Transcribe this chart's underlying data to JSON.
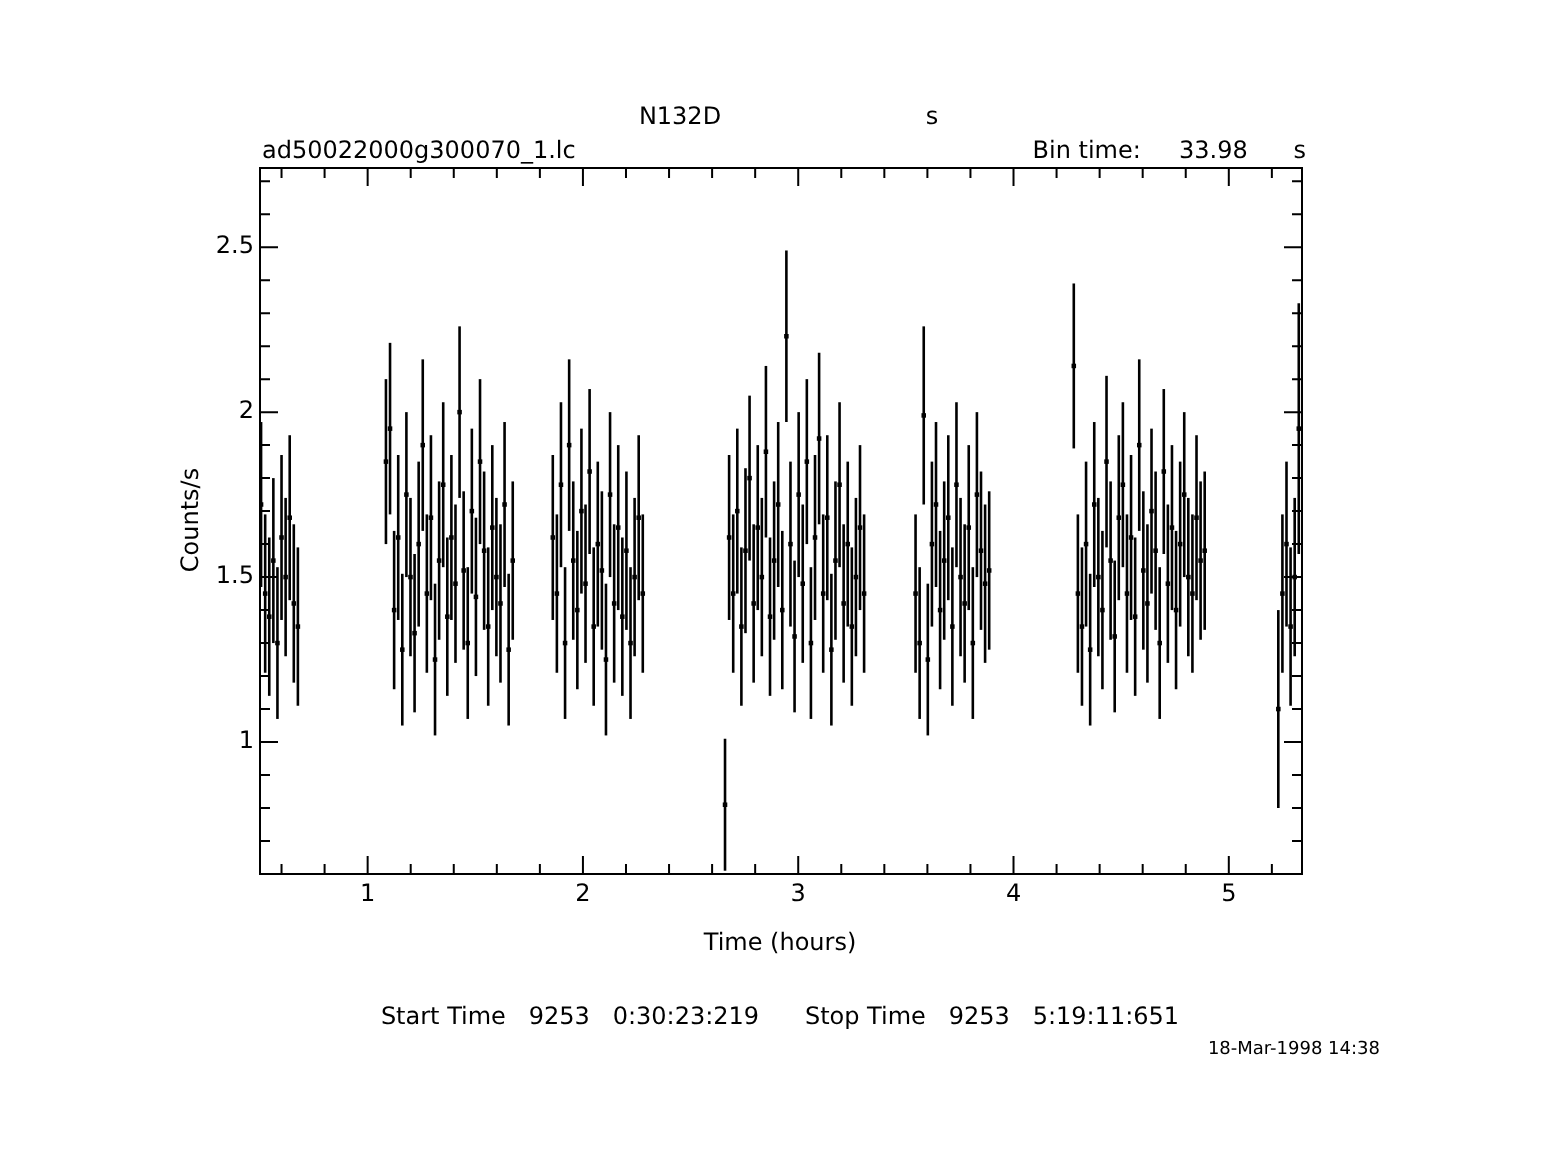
{
  "chart_data": {
    "type": "scatter",
    "title": "N132D",
    "xlabel": "Time (hours)",
    "ylabel": "Counts/s",
    "annotations": [
      "s",
      "ad50022000g300070_1.lc",
      "Bin time:     33.98      s",
      "Start Time   9253   0:30:23:219      Stop Time   9253   5:19:11:651",
      "18-Mar-1998 14:38"
    ],
    "xlim": [
      0.5,
      5.34
    ],
    "ylim": [
      0.6,
      2.74
    ],
    "xticks": [
      {
        "value": 0.6,
        "label": null
      },
      {
        "value": 0.8,
        "label": null
      },
      1,
      {
        "value": 1.2,
        "label": null
      },
      {
        "value": 1.4,
        "label": null
      },
      {
        "value": 1.6,
        "label": null
      },
      {
        "value": 1.8,
        "label": null
      },
      2,
      {
        "value": 2.2,
        "label": null
      },
      {
        "value": 2.4,
        "label": null
      },
      {
        "value": 2.6,
        "label": null
      },
      {
        "value": 2.8,
        "label": null
      },
      3,
      {
        "value": 3.2,
        "label": null
      },
      {
        "value": 3.4,
        "label": null
      },
      {
        "value": 3.6,
        "label": null
      },
      {
        "value": 3.8,
        "label": null
      },
      4,
      {
        "value": 4.2,
        "label": null
      },
      {
        "value": 4.4,
        "label": null
      },
      {
        "value": 4.6,
        "label": null
      },
      {
        "value": 4.8,
        "label": null
      },
      5,
      {
        "value": 5.2,
        "label": null
      }
    ],
    "yticks": [
      {
        "value": 0.7,
        "label": null
      },
      {
        "value": 0.8,
        "label": null
      },
      {
        "value": 0.9,
        "label": null
      },
      1,
      {
        "value": 1.1,
        "label": null
      },
      {
        "value": 1.2,
        "label": null
      },
      {
        "value": 1.3,
        "label": null
      },
      {
        "value": 1.4,
        "label": null
      },
      1.5,
      {
        "value": 1.6,
        "label": null
      },
      {
        "value": 1.7,
        "label": null
      },
      {
        "value": 1.8,
        "label": null
      },
      {
        "value": 1.9,
        "label": null
      },
      2,
      {
        "value": 2.1,
        "label": null
      },
      {
        "value": 2.2,
        "label": null
      },
      {
        "value": 2.3,
        "label": null
      },
      {
        "value": 2.4,
        "label": null
      },
      2.5,
      {
        "value": 2.6,
        "label": null
      },
      {
        "value": 2.7,
        "label": null
      }
    ],
    "grid": false,
    "legend": false,
    "marker": "square",
    "series": [
      {
        "color": "#000000",
        "x": [
          0.505,
          0.524,
          0.543,
          0.562,
          0.581,
          0.6,
          0.619,
          0.638,
          0.657,
          0.676,
          1.085,
          1.104,
          1.123,
          1.142,
          1.161,
          1.18,
          1.199,
          1.218,
          1.237,
          1.256,
          1.275,
          1.294,
          1.313,
          1.332,
          1.351,
          1.37,
          1.389,
          1.408,
          1.427,
          1.446,
          1.465,
          1.484,
          1.503,
          1.522,
          1.541,
          1.56,
          1.579,
          1.598,
          1.617,
          1.636,
          1.655,
          1.674,
          1.86,
          1.879,
          1.898,
          1.917,
          1.936,
          1.955,
          1.974,
          1.993,
          2.012,
          2.031,
          2.05,
          2.069,
          2.088,
          2.107,
          2.126,
          2.145,
          2.164,
          2.183,
          2.202,
          2.221,
          2.24,
          2.259,
          2.278,
          2.66,
          2.679,
          2.698,
          2.717,
          2.736,
          2.755,
          2.774,
          2.793,
          2.812,
          2.831,
          2.85,
          2.869,
          2.888,
          2.907,
          2.926,
          2.945,
          2.964,
          2.983,
          3.002,
          3.021,
          3.04,
          3.059,
          3.078,
          3.097,
          3.116,
          3.135,
          3.154,
          3.173,
          3.192,
          3.211,
          3.23,
          3.249,
          3.268,
          3.287,
          3.306,
          3.545,
          3.564,
          3.583,
          3.602,
          3.621,
          3.64,
          3.659,
          3.678,
          3.697,
          3.716,
          3.735,
          3.754,
          3.773,
          3.792,
          3.811,
          3.83,
          3.849,
          3.868,
          3.887,
          4.28,
          4.299,
          4.318,
          4.337,
          4.356,
          4.375,
          4.394,
          4.413,
          4.432,
          4.451,
          4.47,
          4.489,
          4.508,
          4.527,
          4.546,
          4.565,
          4.584,
          4.603,
          4.622,
          4.641,
          4.66,
          4.679,
          4.698,
          4.717,
          4.736,
          4.755,
          4.774,
          4.793,
          4.812,
          4.831,
          4.85,
          4.869,
          4.888,
          5.23,
          5.249,
          5.268,
          5.287,
          5.306,
          5.325
        ],
        "values": [
          1.72,
          1.45,
          1.38,
          1.55,
          1.3,
          1.62,
          1.5,
          1.68,
          1.42,
          1.35,
          1.85,
          1.95,
          1.4,
          1.62,
          1.28,
          1.75,
          1.5,
          1.33,
          1.6,
          1.9,
          1.45,
          1.68,
          1.25,
          1.55,
          1.78,
          1.38,
          1.62,
          1.48,
          2.0,
          1.52,
          1.3,
          1.7,
          1.44,
          1.85,
          1.58,
          1.35,
          1.65,
          1.5,
          1.42,
          1.72,
          1.28,
          1.55,
          1.62,
          1.45,
          1.78,
          1.3,
          1.9,
          1.55,
          1.4,
          1.7,
          1.48,
          1.82,
          1.35,
          1.6,
          1.52,
          1.25,
          1.75,
          1.42,
          1.65,
          1.38,
          1.58,
          1.3,
          1.5,
          1.68,
          1.45,
          0.81,
          1.62,
          1.45,
          1.7,
          1.35,
          1.58,
          1.8,
          1.42,
          1.65,
          1.5,
          1.88,
          1.38,
          1.55,
          1.72,
          1.4,
          2.23,
          1.6,
          1.32,
          1.75,
          1.48,
          1.85,
          1.3,
          1.62,
          1.92,
          1.45,
          1.68,
          1.28,
          1.55,
          1.78,
          1.42,
          1.6,
          1.35,
          1.5,
          1.65,
          1.45,
          1.45,
          1.3,
          1.99,
          1.25,
          1.6,
          1.72,
          1.4,
          1.55,
          1.68,
          1.35,
          1.78,
          1.5,
          1.42,
          1.65,
          1.3,
          1.75,
          1.58,
          1.48,
          1.52,
          2.14,
          1.45,
          1.35,
          1.6,
          1.28,
          1.72,
          1.5,
          1.4,
          1.85,
          1.55,
          1.32,
          1.68,
          1.78,
          1.45,
          1.62,
          1.38,
          1.9,
          1.52,
          1.42,
          1.7,
          1.58,
          1.3,
          1.82,
          1.48,
          1.65,
          1.4,
          1.6,
          1.75,
          1.5,
          1.45,
          1.68,
          1.55,
          1.58,
          1.1,
          1.45,
          1.6,
          1.35,
          1.5,
          1.95
        ],
        "errors": [
          0.25,
          0.24,
          0.24,
          0.25,
          0.23,
          0.25,
          0.24,
          0.25,
          0.24,
          0.24,
          0.25,
          0.26,
          0.24,
          0.25,
          0.23,
          0.25,
          0.24,
          0.24,
          0.25,
          0.26,
          0.24,
          0.25,
          0.23,
          0.24,
          0.25,
          0.24,
          0.25,
          0.24,
          0.26,
          0.24,
          0.23,
          0.25,
          0.24,
          0.25,
          0.24,
          0.24,
          0.25,
          0.24,
          0.24,
          0.25,
          0.23,
          0.24,
          0.25,
          0.24,
          0.25,
          0.23,
          0.26,
          0.24,
          0.24,
          0.25,
          0.24,
          0.25,
          0.24,
          0.25,
          0.24,
          0.23,
          0.25,
          0.24,
          0.25,
          0.24,
          0.24,
          0.23,
          0.24,
          0.25,
          0.24,
          0.2,
          0.25,
          0.24,
          0.25,
          0.24,
          0.25,
          0.25,
          0.24,
          0.25,
          0.24,
          0.26,
          0.24,
          0.24,
          0.25,
          0.24,
          0.26,
          0.25,
          0.23,
          0.25,
          0.24,
          0.25,
          0.23,
          0.25,
          0.26,
          0.24,
          0.25,
          0.23,
          0.24,
          0.25,
          0.24,
          0.25,
          0.24,
          0.24,
          0.25,
          0.24,
          0.24,
          0.23,
          0.27,
          0.23,
          0.25,
          0.25,
          0.24,
          0.24,
          0.25,
          0.24,
          0.25,
          0.24,
          0.24,
          0.25,
          0.23,
          0.25,
          0.24,
          0.24,
          0.24,
          0.25,
          0.24,
          0.24,
          0.25,
          0.23,
          0.25,
          0.24,
          0.24,
          0.26,
          0.24,
          0.23,
          0.25,
          0.25,
          0.24,
          0.25,
          0.24,
          0.26,
          0.24,
          0.24,
          0.25,
          0.24,
          0.23,
          0.25,
          0.24,
          0.25,
          0.24,
          0.25,
          0.25,
          0.24,
          0.24,
          0.25,
          0.24,
          0.24,
          0.3,
          0.24,
          0.25,
          0.24,
          0.24,
          0.38
        ]
      }
    ]
  }
}
